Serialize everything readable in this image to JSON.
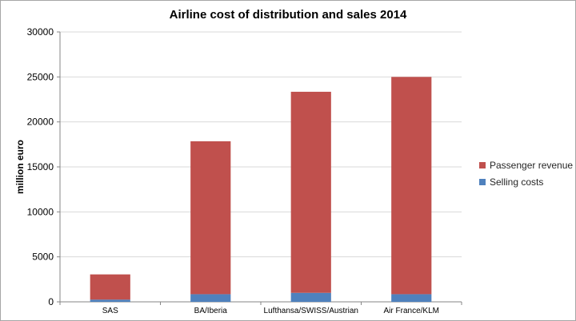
{
  "chart_data": {
    "type": "bar",
    "stacked": true,
    "title": "Airline cost of distribution and sales 2014",
    "xlabel": "",
    "ylabel": "million euro",
    "ylim": [
      0,
      30000
    ],
    "yticks": [
      0,
      5000,
      10000,
      15000,
      20000,
      25000,
      30000
    ],
    "grid": true,
    "legend_position": "right",
    "categories": [
      "SAS",
      "BA/Iberia",
      "Lufthansa/SWISS/Austrian",
      "Air France/KLM"
    ],
    "series": [
      {
        "name": "Selling costs",
        "color": "#4f81bd",
        "values": [
          250,
          850,
          1000,
          850
        ]
      },
      {
        "name": "Passenger revenue",
        "color": "#c0504d",
        "values": [
          2800,
          17000,
          22350,
          24150
        ]
      }
    ],
    "legend_order": [
      "Passenger revenue",
      "Selling costs"
    ]
  }
}
